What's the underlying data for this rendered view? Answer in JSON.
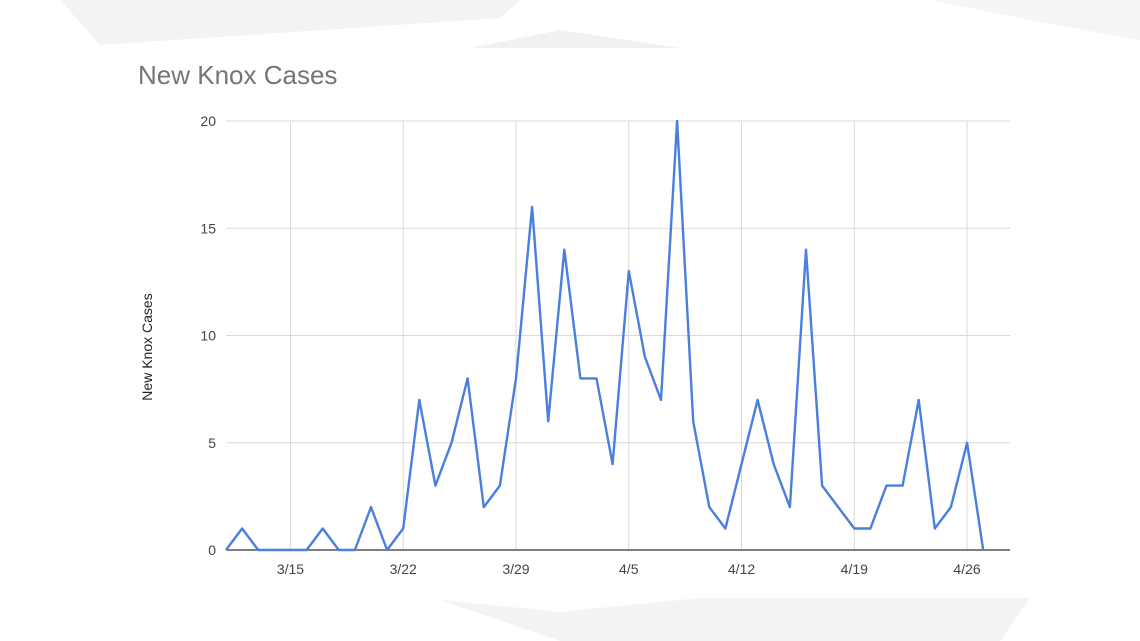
{
  "chart_data": {
    "type": "line",
    "title": "New Knox Cases",
    "xlabel": "",
    "ylabel": "New Knox Cases",
    "ylim": [
      0,
      20
    ],
    "yticks": [
      0,
      5,
      10,
      15,
      20
    ],
    "xticks": [
      "3/15",
      "3/22",
      "3/29",
      "4/5",
      "4/12",
      "4/19",
      "4/26"
    ],
    "grid": true,
    "legend": "none",
    "series": [
      {
        "x": [
          "3/11",
          "3/12",
          "3/13",
          "3/14",
          "3/15",
          "3/16",
          "3/17",
          "3/18",
          "3/19",
          "3/20",
          "3/21",
          "3/22",
          "3/23",
          "3/24",
          "3/25",
          "3/26",
          "3/27",
          "3/28",
          "3/29",
          "3/30",
          "3/31",
          "4/1",
          "4/2",
          "4/3",
          "4/4",
          "4/5",
          "4/6",
          "4/7",
          "4/8",
          "4/9",
          "4/10",
          "4/11",
          "4/12",
          "4/13",
          "4/14",
          "4/15",
          "4/16",
          "4/17",
          "4/18",
          "4/19",
          "4/20",
          "4/21",
          "4/22",
          "4/23",
          "4/24",
          "4/25",
          "4/26",
          "4/27"
        ],
        "values": [
          0,
          1,
          0,
          0,
          0,
          0,
          1,
          0,
          0,
          2,
          0,
          1,
          7,
          3,
          5,
          8,
          2,
          3,
          8,
          16,
          6,
          14,
          8,
          8,
          4,
          13,
          9,
          7,
          20,
          6,
          2,
          1,
          4,
          7,
          4,
          2,
          14,
          3,
          2,
          1,
          1,
          3,
          3,
          7,
          1,
          2,
          5,
          0
        ],
        "color": "#4a7fdd"
      }
    ]
  }
}
